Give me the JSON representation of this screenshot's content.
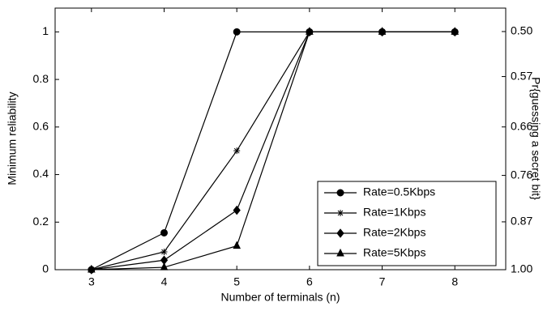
{
  "chart_data": {
    "type": "line",
    "xlabel": "Number of terminals (n)",
    "ylabel": "Minimum reliability",
    "y2label": "Pr{guessing a secret bit}",
    "x": [
      3,
      4,
      5,
      6,
      7,
      8
    ],
    "series": [
      {
        "name": "Rate=0.5Kbps",
        "color": "#000000",
        "marker": "circle",
        "values": [
          0,
          0.155,
          1,
          1,
          1,
          1
        ]
      },
      {
        "name": "Rate=1Kbps",
        "color": "#000000",
        "marker": "asterisk",
        "values": [
          0,
          0.075,
          0.5,
          1,
          1,
          1
        ]
      },
      {
        "name": "Rate=2Kbps",
        "color": "#000000",
        "marker": "diamond",
        "values": [
          0,
          0.04,
          0.25,
          1,
          1,
          1
        ]
      },
      {
        "name": "Rate=5Kbps",
        "color": "#000000",
        "marker": "triangle",
        "values": [
          0,
          0.01,
          0.1,
          1,
          1,
          1
        ]
      }
    ],
    "xlim": [
      2.5,
      8.7
    ],
    "xticks": [
      3,
      4,
      5,
      6,
      7,
      8
    ],
    "ylim": [
      0,
      1.1
    ],
    "yticks": [
      0,
      0.2,
      0.4,
      0.6,
      0.8,
      1
    ],
    "y2lim": [
      1,
      0.467
    ],
    "y2scale": "log",
    "y2ticks": [
      {
        "value": 0.5,
        "label": "0.50"
      },
      {
        "value": 0.57,
        "label": "0.57"
      },
      {
        "value": 0.66,
        "label": "0.66"
      },
      {
        "value": 0.76,
        "label": "0.76"
      },
      {
        "value": 0.87,
        "label": "0.87"
      },
      {
        "value": 1,
        "label": "1.00"
      }
    ],
    "legend": "lower right"
  }
}
